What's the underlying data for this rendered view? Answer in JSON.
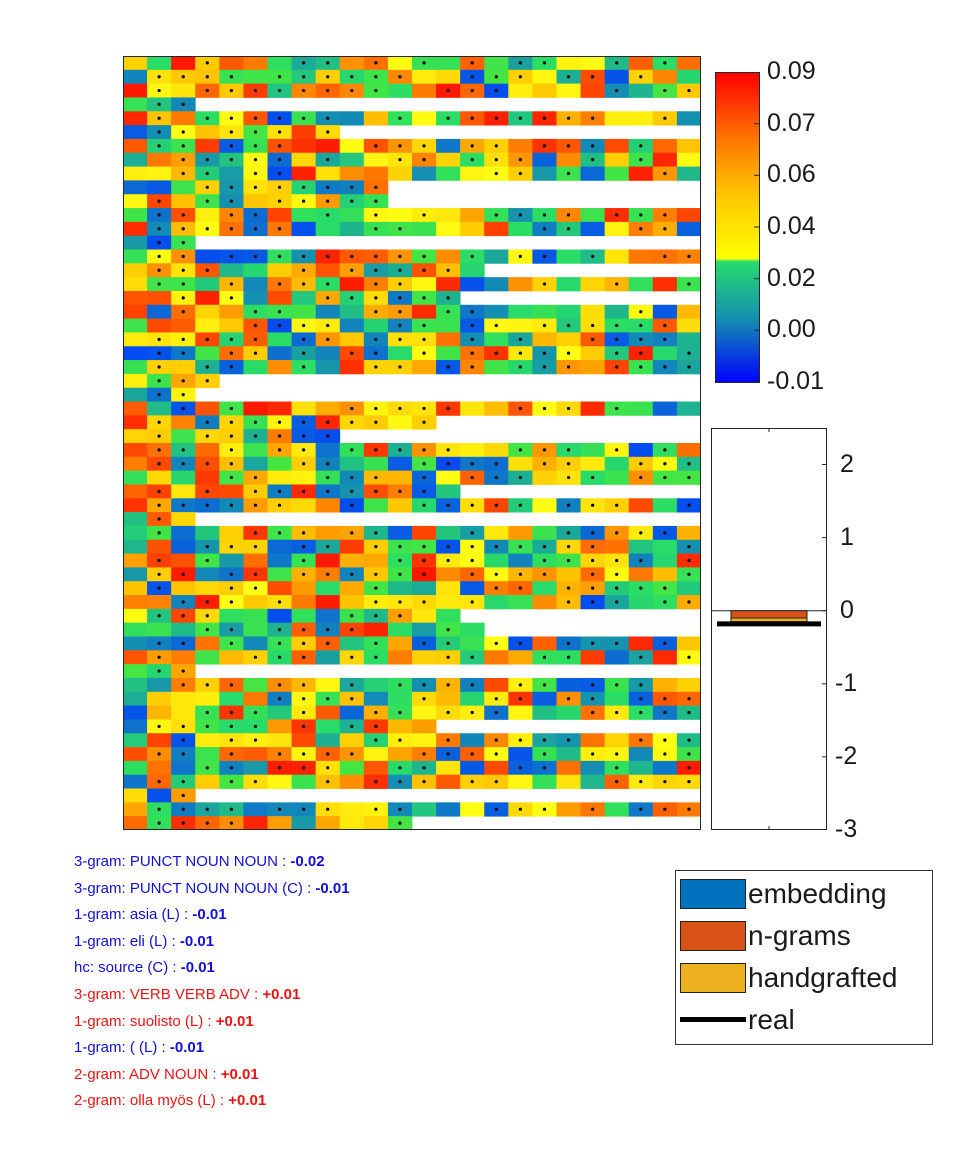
{
  "chart_data": [
    {
      "type": "heatmap",
      "rows": 56,
      "cols": 24,
      "row_lengths": [
        24,
        24,
        24,
        3,
        24,
        9,
        24,
        24,
        24,
        11,
        11,
        24,
        24,
        3,
        24,
        15,
        24,
        14,
        24,
        24,
        24,
        24,
        24,
        4,
        3,
        24,
        13,
        9,
        24,
        24,
        24,
        14,
        24,
        3,
        24,
        24,
        24,
        24,
        24,
        24,
        14,
        15,
        24,
        24,
        3,
        24,
        24,
        24,
        13,
        24,
        24,
        24,
        24,
        3,
        24,
        12
      ],
      "grid": false
    },
    {
      "type": "colorbar",
      "tick_labels": [
        "0.09",
        "0.07",
        "0.06",
        "0.04",
        "0.02",
        "0.00",
        "-0.01"
      ]
    },
    {
      "type": "bar",
      "ylim": [
        -3,
        2.5
      ],
      "yticks": [
        2,
        1,
        0,
        -1,
        -2,
        -3
      ],
      "ytick_labels": [
        "2",
        "1",
        "0",
        "-1",
        "-2",
        "-3"
      ],
      "series": [
        {
          "name": "embedding",
          "value": 0.0,
          "color": "#0072bd"
        },
        {
          "name": "n-grams",
          "value": -0.1,
          "color": "#d95319"
        },
        {
          "name": "handgrafted",
          "value": -0.05,
          "color": "#edb120"
        },
        {
          "name": "real",
          "value": -0.18,
          "color": "#000000"
        }
      ]
    }
  ],
  "features": [
    {
      "label": "3-gram: PUNCT NOUN NOUN : ",
      "value": "-0.02",
      "sign": "neg"
    },
    {
      "label": "3-gram: PUNCT NOUN NOUN (C) : ",
      "value": "-0.01",
      "sign": "neg"
    },
    {
      "label": "1-gram: asia (L) : ",
      "value": "-0.01",
      "sign": "neg"
    },
    {
      "label": "1-gram: eli (L) : ",
      "value": "-0.01",
      "sign": "neg"
    },
    {
      "label": "hc: source (C) : ",
      "value": "-0.01",
      "sign": "neg"
    },
    {
      "label": "3-gram: VERB VERB ADV : ",
      "value": "+0.01",
      "sign": "pos"
    },
    {
      "label": "1-gram: suolisto (L) : ",
      "value": "+0.01",
      "sign": "pos"
    },
    {
      "label": "1-gram: ( (L) : ",
      "value": "-0.01",
      "sign": "neg"
    },
    {
      "label": "2-gram: ADV NOUN : ",
      "value": "+0.01",
      "sign": "pos"
    },
    {
      "label": "2-gram: olla myös (L) : ",
      "value": "+0.01",
      "sign": "pos"
    }
  ],
  "legend": [
    {
      "label": "embedding",
      "color": "#0072bd",
      "kind": "box"
    },
    {
      "label": "n-grams",
      "color": "#d95319",
      "kind": "box"
    },
    {
      "label": "handgrafted",
      "color": "#edb120",
      "kind": "box"
    },
    {
      "label": "real",
      "color": "#000000",
      "kind": "line"
    }
  ]
}
